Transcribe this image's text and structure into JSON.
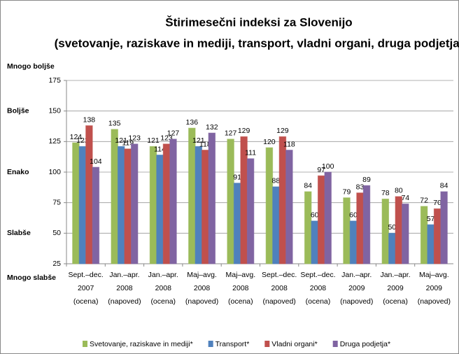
{
  "chart_data": {
    "type": "bar",
    "title": "Štirimesečni indeksi za Slovenijo",
    "subtitle": "(svetovanje, raziskave in mediji, transport, vladni organi, druga podjetja)",
    "categories": [
      [
        "Sept.–dec.",
        "2007",
        "(ocena)"
      ],
      [
        "Jan.–apr.",
        "2008",
        "(napoved)"
      ],
      [
        "Jan.–apr.",
        "2008",
        "(ocena)"
      ],
      [
        "Maj–avg.",
        "2008",
        "(napoved)"
      ],
      [
        "Maj–avg.",
        "2008",
        "(ocena)"
      ],
      [
        "Sept.–dec.",
        "2008",
        "(napoved)"
      ],
      [
        "Sept.–dec.",
        "2008",
        "(ocena)"
      ],
      [
        "Jan.–apr.",
        "2009",
        "(napoved)"
      ],
      [
        "Jan.–apr.",
        "2009",
        "(ocena)"
      ],
      [
        "Maj–avg.",
        "2009",
        "(napoved)"
      ]
    ],
    "series": [
      {
        "name": "Svetovanje, raziskave in mediji*",
        "color": "#9bbb59",
        "values": [
          124,
          135,
          121,
          136,
          127,
          120,
          84,
          79,
          78,
          72
        ]
      },
      {
        "name": "Transport*",
        "color": "#4f81bd",
        "values": [
          121,
          121,
          114,
          121,
          91,
          88,
          60,
          60,
          50,
          57
        ]
      },
      {
        "name": "Vladni organi*",
        "color": "#c0504d",
        "values": [
          138,
          119,
          123,
          118,
          129,
          129,
          97,
          83,
          80,
          70
        ]
      },
      {
        "name": "Druga podjetja*",
        "color": "#8064a2",
        "values": [
          104,
          123,
          127,
          132,
          111,
          118,
          100,
          89,
          74,
          84
        ]
      }
    ],
    "ylim": [
      25,
      175
    ],
    "yticks": [
      25,
      50,
      75,
      100,
      125,
      150,
      175
    ],
    "grid": true,
    "y_top_label": "Mnogo boljše",
    "y_bottom_label": "Mnogo slabše",
    "y_side_labels": [
      {
        "value": 150,
        "label": "Boljše"
      },
      {
        "value": 100,
        "label": "Enako"
      },
      {
        "value": 50,
        "label": "Slabše"
      }
    ],
    "legend": "bottom"
  }
}
